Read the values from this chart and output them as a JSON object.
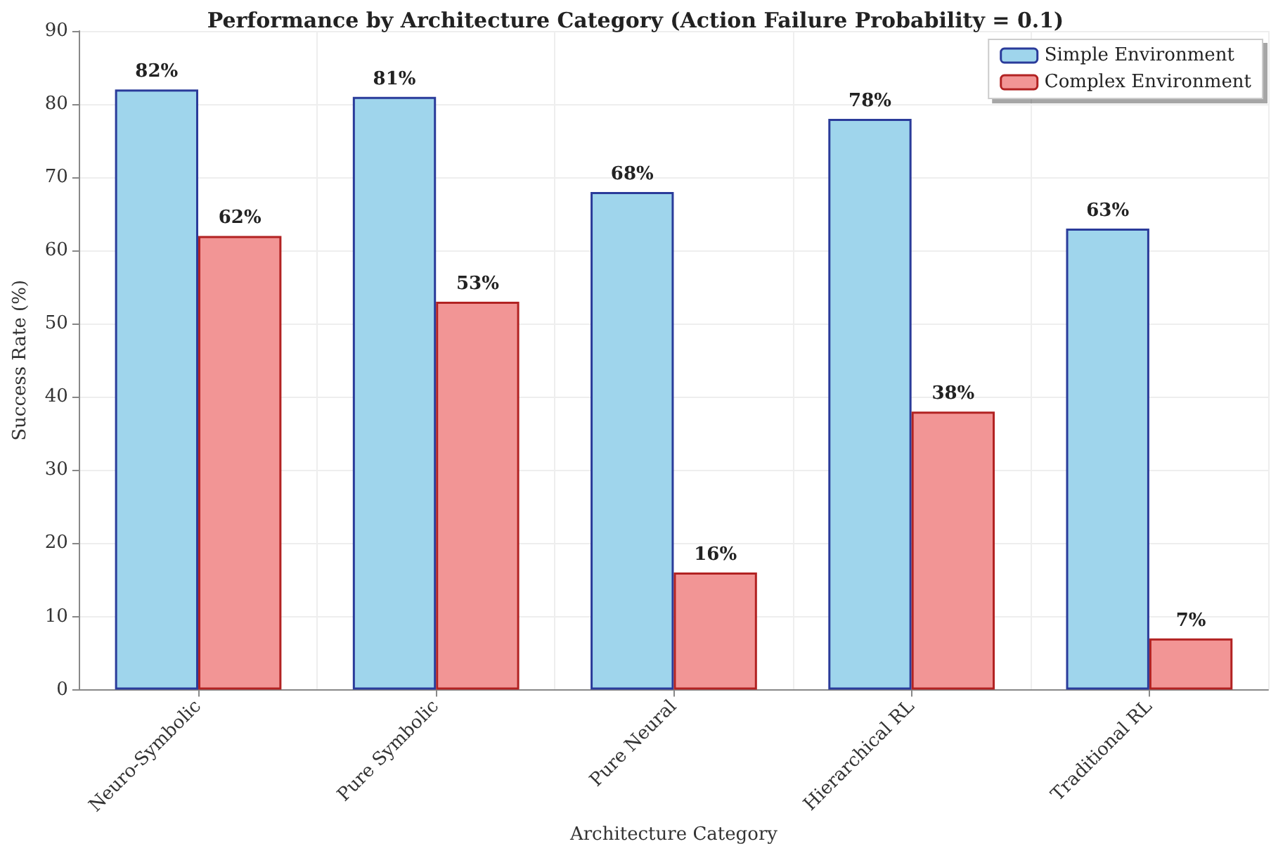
{
  "chart_data": {
    "type": "bar",
    "title": "Performance by Architecture Category (Action Failure Probability = 0.1)",
    "xlabel": "Architecture Category",
    "ylabel": "Success Rate (%)",
    "categories": [
      "Neuro-Symbolic",
      "Pure Symbolic",
      "Pure Neural",
      "Hierarchical RL",
      "Traditional RL"
    ],
    "series": [
      {
        "name": "Simple Environment",
        "color": "#9fd5ec",
        "values": [
          82,
          81,
          68,
          78,
          63
        ],
        "value_labels": [
          "82%",
          "81%",
          "68%",
          "78%",
          "63%"
        ]
      },
      {
        "name": "Complex Environment",
        "color": "#f29595",
        "values": [
          62,
          53,
          16,
          38,
          7
        ],
        "value_labels": [
          "62%",
          "53%",
          "16%",
          "38%",
          "7%"
        ]
      }
    ],
    "ylim": [
      0,
      90
    ],
    "yticks": [
      0,
      10,
      20,
      30,
      40,
      50,
      60,
      70,
      80,
      90
    ],
    "grid": true,
    "legend": "top right"
  }
}
